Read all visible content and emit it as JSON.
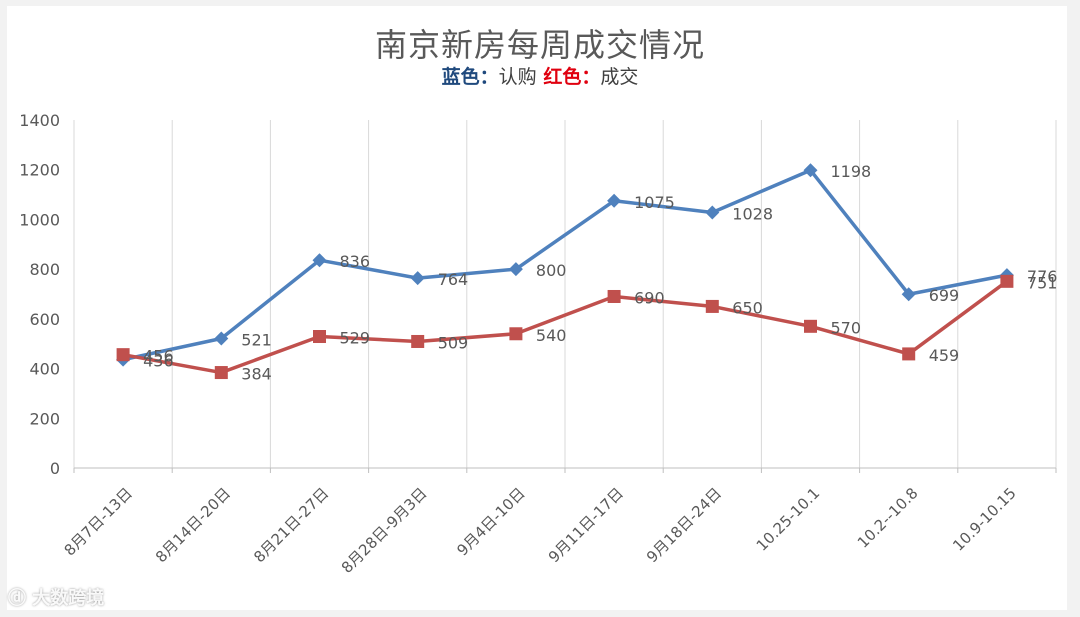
{
  "chart_data": {
    "type": "line",
    "title": "南京新房每周成交情况",
    "subtitle": {
      "series1_label": "蓝色",
      "series1_value": "认购",
      "series2_label": "红色",
      "series2_value": "成交",
      "separator": "："
    },
    "categories": [
      "8月7日-13日",
      "8月14日-20日",
      "8月21日-27日",
      "8月28日-9月3日",
      "9月4日-10日",
      "9月11日-17日",
      "9月18日-24日",
      "10.25-10.1",
      "10.2--10.8",
      "10.9-10.15"
    ],
    "series": [
      {
        "values": [
          436,
          521,
          836,
          764,
          800,
          1075,
          1028,
          1198,
          699,
          776
        ],
        "color": "#4f81bd",
        "marker": "diamond"
      },
      {
        "values": [
          456,
          384,
          529,
          509,
          540,
          690,
          650,
          570,
          459,
          751
        ],
        "color": "#c0504d",
        "marker": "square"
      }
    ],
    "ylim": [
      0,
      1400
    ],
    "yticks": [
      0,
      200,
      400,
      600,
      800,
      1000,
      1200,
      1400
    ],
    "grid": "vertical",
    "legend": "none"
  },
  "watermark": "大数跨境"
}
